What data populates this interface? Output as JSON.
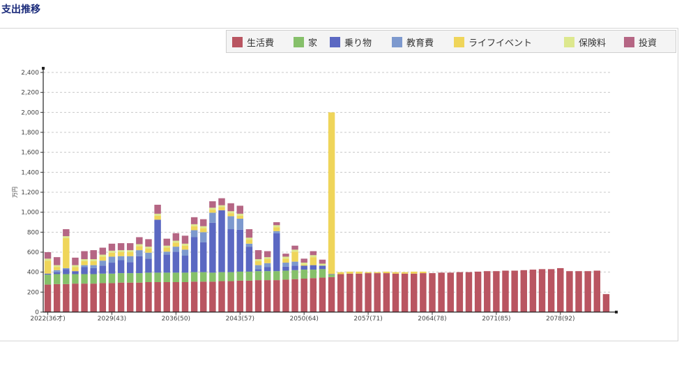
{
  "page": {
    "title": "支出推移"
  },
  "colors": {
    "生活費": "#b95561",
    "家": "#86c06a",
    "乗り物": "#5b68c2",
    "教育費": "#7d99ce",
    "ライフイベント": "#efd55a",
    "保険料": "#dde88e",
    "投資": "#b56684"
  },
  "chart_data": {
    "type": "bar",
    "stacked": true,
    "title": "",
    "xlabel": "",
    "ylabel": "万円",
    "ylim": [
      0,
      2400
    ],
    "yticks": [
      0,
      200,
      400,
      600,
      800,
      1000,
      1200,
      1400,
      1600,
      1800,
      2000,
      2200,
      2400
    ],
    "ytick_labels": [
      "0",
      "200",
      "400",
      "600",
      "800",
      "1,000",
      "1,200",
      "1,400",
      "1,600",
      "1,800",
      "2,000",
      "2,200",
      "2,400"
    ],
    "grid": "horizontal dashed",
    "legend_position": "top-right",
    "x_tick_labels": [
      {
        "index": 0,
        "label": "2022(36才)"
      },
      {
        "index": 7,
        "label": "2029(43)"
      },
      {
        "index": 14,
        "label": "2036(50)"
      },
      {
        "index": 21,
        "label": "2043(57)"
      },
      {
        "index": 28,
        "label": "2050(64)"
      },
      {
        "index": 35,
        "label": "2057(71)"
      },
      {
        "index": 42,
        "label": "2064(78)"
      },
      {
        "index": 49,
        "label": "2071(85)"
      },
      {
        "index": 56,
        "label": "2078(92)"
      }
    ],
    "categories": [
      2022,
      2023,
      2024,
      2025,
      2026,
      2027,
      2028,
      2029,
      2030,
      2031,
      2032,
      2033,
      2034,
      2035,
      2036,
      2037,
      2038,
      2039,
      2040,
      2041,
      2042,
      2043,
      2044,
      2045,
      2046,
      2047,
      2048,
      2049,
      2050,
      2051,
      2052,
      2053,
      2054,
      2055,
      2056,
      2057,
      2058,
      2059,
      2060,
      2061,
      2062,
      2063,
      2064,
      2065,
      2066,
      2067,
      2068,
      2069,
      2070,
      2071,
      2072,
      2073,
      2074,
      2075,
      2076,
      2077,
      2078,
      2079,
      2080,
      2081,
      2082,
      2083
    ],
    "series": [
      {
        "name": "生活費",
        "values": [
          275,
          280,
          280,
          285,
          285,
          285,
          290,
          290,
          295,
          295,
          295,
          300,
          300,
          300,
          300,
          300,
          305,
          305,
          305,
          310,
          310,
          315,
          315,
          320,
          320,
          320,
          325,
          330,
          335,
          340,
          345,
          350,
          380,
          385,
          385,
          390,
          390,
          390,
          385,
          385,
          385,
          390,
          390,
          395,
          395,
          400,
          400,
          405,
          410,
          410,
          415,
          415,
          420,
          425,
          430,
          430,
          440,
          410,
          410,
          410,
          415,
          180
        ]
      },
      {
        "name": "家",
        "values": [
          100,
          100,
          100,
          95,
          95,
          95,
          95,
          95,
          95,
          95,
          95,
          95,
          95,
          95,
          95,
          95,
          95,
          95,
          90,
          90,
          90,
          90,
          90,
          90,
          90,
          90,
          90,
          90,
          90,
          85,
          85,
          25,
          0,
          0,
          0,
          0,
          0,
          0,
          0,
          0,
          0,
          0,
          0,
          0,
          0,
          0,
          0,
          0,
          0,
          0,
          0,
          0,
          0,
          0,
          0,
          0,
          0,
          0,
          0,
          0,
          0,
          0
        ]
      },
      {
        "name": "乗り物",
        "values": [
          10,
          20,
          50,
          30,
          70,
          60,
          80,
          110,
          130,
          110,
          170,
          140,
          530,
          180,
          210,
          170,
          350,
          300,
          500,
          620,
          430,
          420,
          250,
          20,
          40,
          380,
          40,
          45,
          40,
          45,
          35,
          5,
          0,
          0,
          0,
          0,
          0,
          0,
          0,
          0,
          0,
          0,
          0,
          0,
          0,
          0,
          0,
          0,
          0,
          0,
          0,
          0,
          0,
          0,
          0,
          0,
          0,
          0,
          0,
          0,
          0,
          0
        ]
      },
      {
        "name": "教育費",
        "values": [
          0,
          20,
          10,
          0,
          20,
          30,
          50,
          60,
          40,
          60,
          60,
          60,
          0,
          30,
          50,
          60,
          70,
          100,
          100,
          0,
          130,
          110,
          30,
          40,
          40,
          20,
          40,
          40,
          0,
          0,
          0,
          0,
          0,
          0,
          0,
          0,
          0,
          0,
          0,
          0,
          0,
          0,
          0,
          0,
          0,
          0,
          0,
          0,
          0,
          0,
          0,
          0,
          0,
          0,
          0,
          0,
          0,
          0,
          0,
          0,
          0,
          0
        ]
      },
      {
        "name": "ライフイベント",
        "values": [
          130,
          30,
          300,
          40,
          40,
          40,
          40,
          40,
          40,
          40,
          40,
          40,
          40,
          40,
          40,
          40,
          40,
          40,
          30,
          30,
          30,
          30,
          40,
          40,
          40,
          40,
          40,
          100,
          10,
          80,
          0,
          1620,
          20,
          20,
          20,
          10,
          10,
          15,
          15,
          15,
          20,
          15,
          0,
          0,
          0,
          0,
          0,
          0,
          0,
          0,
          0,
          0,
          0,
          0,
          0,
          0,
          0,
          0,
          0,
          0,
          0,
          0
        ]
      },
      {
        "name": "保険料",
        "values": [
          20,
          20,
          20,
          20,
          20,
          20,
          20,
          20,
          20,
          20,
          20,
          20,
          20,
          20,
          20,
          20,
          20,
          20,
          20,
          20,
          20,
          20,
          20,
          20,
          20,
          20,
          20,
          20,
          20,
          20,
          20,
          0,
          0,
          0,
          0,
          0,
          0,
          0,
          0,
          0,
          0,
          0,
          0,
          0,
          0,
          0,
          0,
          0,
          0,
          0,
          0,
          0,
          0,
          0,
          0,
          0,
          0,
          0,
          0,
          0,
          0,
          0
        ]
      },
      {
        "name": "投資",
        "values": [
          65,
          80,
          70,
          75,
          80,
          90,
          70,
          70,
          70,
          70,
          70,
          75,
          90,
          70,
          75,
          80,
          70,
          70,
          65,
          70,
          80,
          80,
          85,
          90,
          60,
          30,
          30,
          40,
          40,
          40,
          40,
          0,
          0,
          0,
          0,
          0,
          0,
          0,
          0,
          0,
          0,
          0,
          0,
          0,
          0,
          0,
          0,
          0,
          0,
          0,
          0,
          0,
          0,
          0,
          0,
          0,
          0,
          0,
          0,
          0,
          0,
          0
        ]
      }
    ]
  }
}
